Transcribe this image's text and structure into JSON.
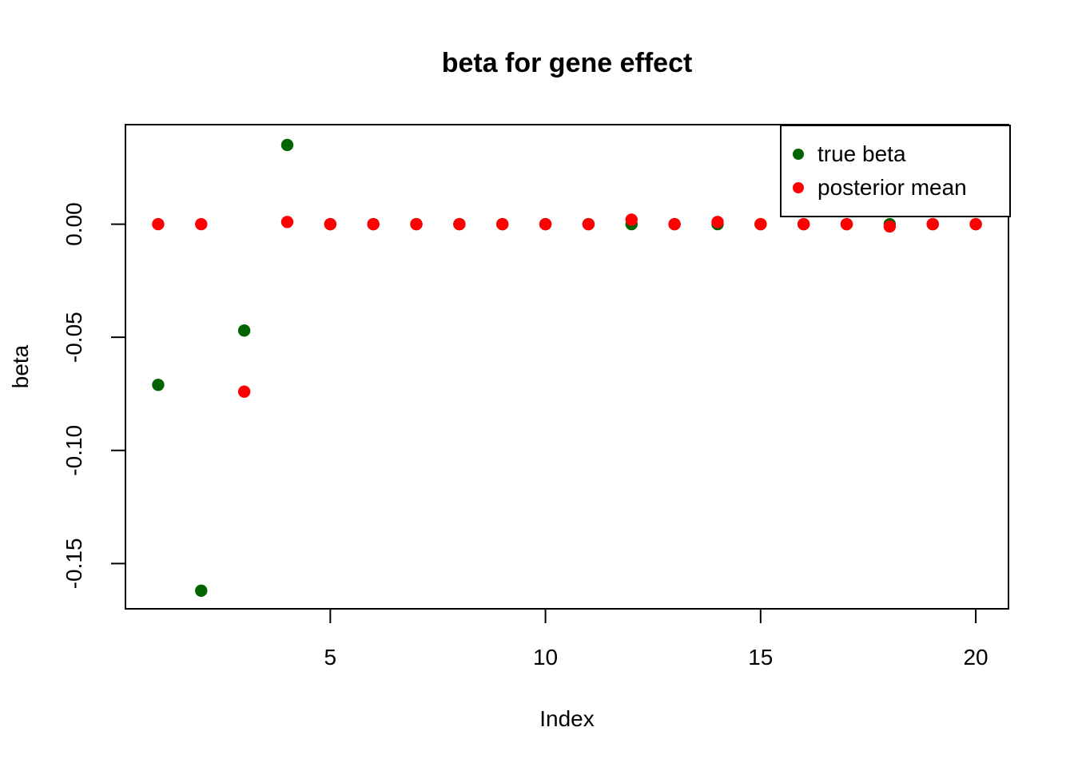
{
  "chart_data": {
    "type": "scatter",
    "title": "beta for gene effect",
    "xlabel": "Index",
    "ylabel": "beta",
    "x": [
      1,
      2,
      3,
      4,
      5,
      6,
      7,
      8,
      9,
      10,
      11,
      12,
      13,
      14,
      15,
      16,
      17,
      18,
      19,
      20
    ],
    "series": [
      {
        "name": "true beta",
        "color": "#006400",
        "values": [
          -0.071,
          -0.162,
          -0.047,
          0.035,
          0,
          0,
          0,
          0,
          0,
          0,
          0,
          0,
          0,
          0,
          0,
          0,
          0,
          0,
          0,
          0
        ]
      },
      {
        "name": "posterior mean",
        "color": "#ff0000",
        "values": [
          0,
          0,
          -0.074,
          0.001,
          0,
          0,
          0,
          0,
          0,
          0,
          0,
          0.002,
          0,
          0.001,
          0,
          0,
          0,
          -0.001,
          0,
          0
        ]
      }
    ],
    "xlim": [
      0.24,
      20.76
    ],
    "ylim": [
      -0.17,
      0.044
    ],
    "x_ticks": [
      {
        "value": 5,
        "label": "5"
      },
      {
        "value": 10,
        "label": "10"
      },
      {
        "value": 15,
        "label": "15"
      },
      {
        "value": 20,
        "label": "20"
      }
    ],
    "y_ticks": [
      {
        "value": 0,
        "label": "0.00"
      },
      {
        "value": -0.05,
        "label": "-0.05"
      },
      {
        "value": -0.1,
        "label": "-0.10"
      },
      {
        "value": -0.15,
        "label": "-0.15"
      }
    ],
    "grid": false,
    "legend_position": "top-right",
    "marker": "filled-circle",
    "axis_color": "#000000",
    "background_color": "#ffffff"
  }
}
